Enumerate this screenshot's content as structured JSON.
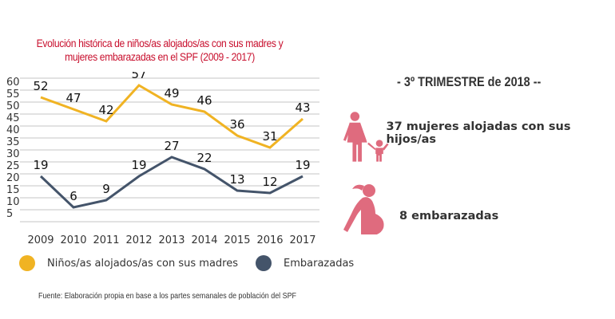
{
  "chart_data": {
    "type": "line",
    "title": "Evolución histórica de niños/as alojados/as con sus madres y mujeres embarazadas en el SPF (2009 - 2017)",
    "title_lines": [
      "Evolución histórica de niños/as alojados/as con sus madres y",
      "mujeres embarazadas en el SPF (2009 - 2017)"
    ],
    "x": [
      "2009",
      "2010",
      "2011",
      "2012",
      "2013",
      "2014",
      "2015",
      "2016",
      "2017"
    ],
    "yticks": [
      5,
      10,
      15,
      20,
      25,
      30,
      35,
      40,
      45,
      50,
      55,
      60
    ],
    "ylim": [
      0,
      60
    ],
    "grid": true,
    "legend_position": "bottom",
    "series": [
      {
        "name": "Niños/as alojados/as con sus madres",
        "color": "#f0b323",
        "values": [
          52,
          47,
          42,
          57,
          49,
          46,
          36,
          31,
          43
        ]
      },
      {
        "name": "Embarazadas",
        "color": "#44546a",
        "values": [
          19,
          6,
          9,
          19,
          27,
          22,
          13,
          12,
          19
        ]
      }
    ],
    "source": "Fuente: Elaboración propia en base a los partes semanales de población del SPF"
  },
  "summary": {
    "period_title": "- 3º TRIMESTRE de 2018 --",
    "accent_color": "#df6b7e",
    "stats": [
      {
        "icon": "mother-child-icon",
        "text": "37 mujeres alojadas con sus hijos/as"
      },
      {
        "icon": "pregnant-woman-icon",
        "text": "8 embarazadas"
      }
    ]
  }
}
